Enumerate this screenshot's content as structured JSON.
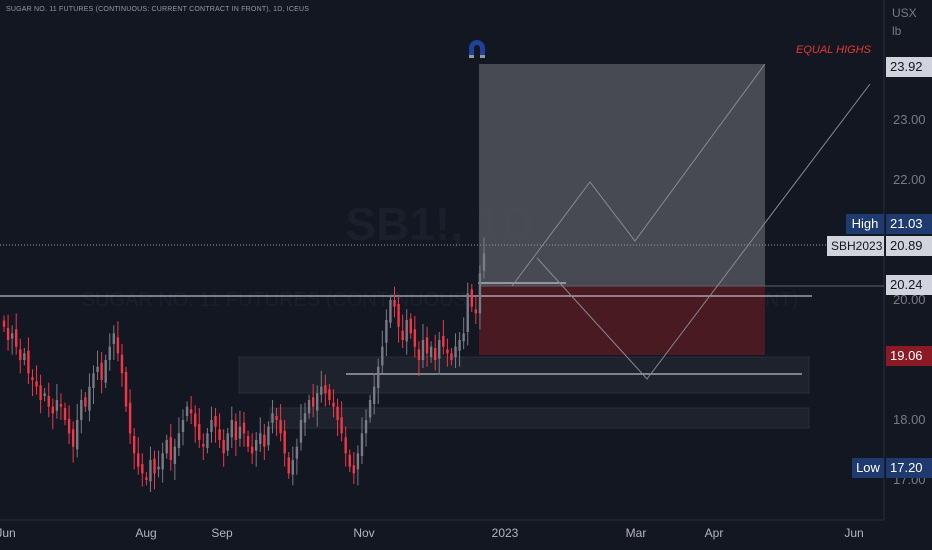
{
  "header": {
    "symbol_line": "SUGAR NO. 11 FUTURES (CONTINUOUS: CURRENT CONTRACT IN FRONT), 1D, ICEUS",
    "watermark_symbol": "SB1!, 1D",
    "watermark_desc": "SUGAR NO. 11 FUTURES (CONTINUOUS: CURRENT CONTRACT IN FRONT)"
  },
  "price_axis": {
    "unit_top": "USX",
    "unit_bottom": "lb",
    "ticks": [
      "23.00",
      "22.00",
      "20.00",
      "18.00",
      "17.00"
    ]
  },
  "time_axis": {
    "labels": [
      "Jun",
      "Aug",
      "Sep",
      "Nov",
      "2023",
      "Mar",
      "Apr",
      "Jun"
    ]
  },
  "tags": {
    "target": "23.92",
    "high_label": "High",
    "high_value": "21.03",
    "contract_label": "SBH2023",
    "contract_value": "20.89",
    "entry": "20.24",
    "stop": "19.06",
    "low_label": "Low",
    "low_value": "17.20"
  },
  "annotation": {
    "equal_highs": "EQUAL HIGHS"
  },
  "icons": [
    "magnet-icon"
  ],
  "colors": {
    "background": "#131722",
    "bull": "#787b86",
    "bear": "#f23645",
    "high_tag": "#1e3a6e",
    "stop_tag": "#8b1a24",
    "annotation": "#e53935"
  },
  "chart_data": {
    "type": "candlestick",
    "title": "SUGAR NO. 11 FUTURES (CONTINUOUS: CURRENT CONTRACT IN FRONT), 1D, ICEUS",
    "ylim": [
      16.9,
      24.7
    ],
    "y_unit": "USX/lb",
    "x_labels": [
      "Jun",
      "Aug",
      "Sep",
      "Nov",
      "2023",
      "Mar",
      "Apr",
      "Jun"
    ],
    "close_path": [
      19.8,
      19.6,
      19.7,
      19.5,
      19.3,
      19.4,
      19.1,
      19.0,
      18.9,
      18.7,
      18.8,
      18.6,
      18.5,
      18.7,
      18.6,
      18.4,
      18.2,
      18.0,
      18.4,
      18.7,
      18.6,
      18.9,
      19.1,
      19.2,
      19.0,
      19.3,
      19.5,
      19.7,
      19.4,
      19.1,
      18.6,
      18.2,
      17.9,
      17.7,
      17.6,
      17.5,
      17.8,
      17.6,
      17.7,
      17.9,
      18.1,
      17.8,
      18.0,
      18.2,
      18.4,
      18.6,
      18.5,
      18.3,
      18.1,
      18.0,
      18.2,
      18.4,
      18.3,
      18.1,
      17.9,
      18.2,
      18.4,
      18.1,
      18.3,
      18.2,
      18.0,
      17.9,
      18.1,
      18.2,
      18.0,
      18.3,
      18.5,
      18.4,
      18.2,
      17.9,
      17.6,
      17.8,
      18.0,
      18.4,
      18.5,
      18.7,
      18.6,
      18.8,
      18.9,
      18.8,
      18.7,
      18.6,
      18.4,
      18.2,
      17.9,
      17.7,
      17.6,
      17.9,
      18.2,
      18.4,
      18.7,
      18.9,
      19.2,
      19.5,
      19.9,
      20.2,
      20.1,
      19.8,
      19.6,
      19.9,
      19.7,
      19.5,
      19.3,
      19.6,
      19.4,
      19.5,
      19.3,
      19.6,
      19.5,
      19.4,
      19.3,
      19.5,
      19.6,
      19.7,
      20.3,
      20.1,
      20.0,
      20.6,
      20.9
    ],
    "levels": {
      "target": 23.92,
      "high": 21.03,
      "last": 20.89,
      "entry": 20.24,
      "stop": 19.06,
      "low": 17.2
    },
    "annotations": [
      {
        "text": "EQUAL HIGHS",
        "y": 23.92
      }
    ]
  }
}
